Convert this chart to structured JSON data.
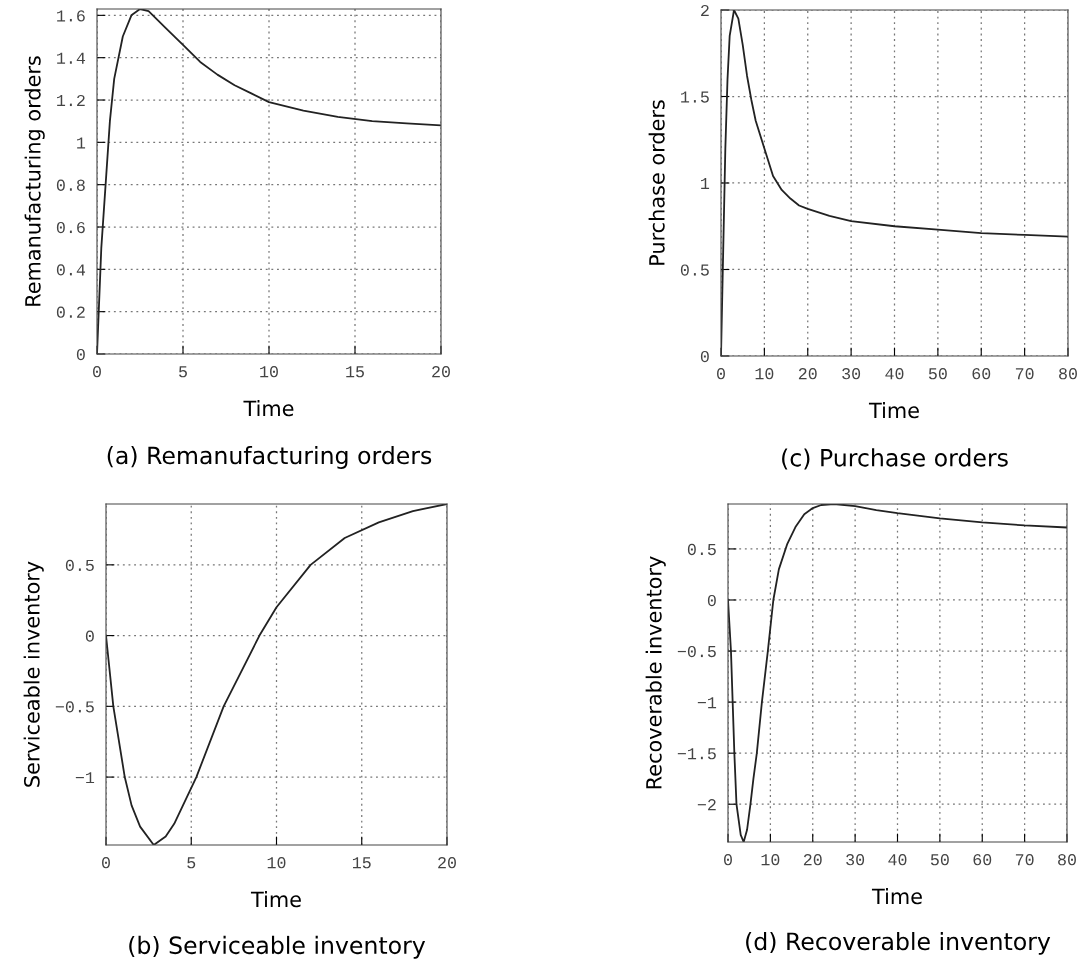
{
  "chart_data": [
    {
      "type": "line",
      "xlabel": "Time",
      "ylabel": "Remanufacturing orders",
      "annotations": [
        "(a) Remanufacturing orders"
      ],
      "grid": true,
      "x": [
        0,
        0.25,
        0.5,
        0.75,
        1,
        1.5,
        2,
        2.5,
        3,
        4,
        5,
        6,
        7,
        8,
        9,
        10,
        12,
        14,
        16,
        18,
        20
      ],
      "series": [
        {
          "color": "#222222",
          "values": [
            0,
            0.5,
            0.8,
            1.1,
            1.3,
            1.5,
            1.6,
            1.63,
            1.62,
            1.54,
            1.46,
            1.38,
            1.32,
            1.27,
            1.23,
            1.19,
            1.15,
            1.12,
            1.1,
            1.09,
            1.08
          ]
        }
      ],
      "xlim": [
        0,
        20
      ],
      "ylim": [
        0,
        1.63
      ],
      "xticks": [
        0,
        5,
        10,
        15,
        20
      ],
      "yticks": [
        0,
        0.2,
        0.4,
        0.6,
        0.8,
        1,
        1.2,
        1.4,
        1.6
      ]
    },
    {
      "type": "line",
      "xlabel": "Time",
      "ylabel": "Purchase orders",
      "annotations": [
        "(c) Purchase orders"
      ],
      "grid": true,
      "x": [
        0,
        0.5,
        1,
        1.5,
        2,
        3,
        4,
        5,
        6,
        7,
        8,
        10,
        12,
        14,
        16,
        18,
        20,
        25,
        30,
        40,
        50,
        60,
        70,
        80
      ],
      "series": [
        {
          "color": "#222222",
          "values": [
            0,
            0.6,
            1.2,
            1.6,
            1.85,
            2.0,
            1.95,
            1.8,
            1.62,
            1.48,
            1.36,
            1.2,
            1.04,
            0.96,
            0.91,
            0.87,
            0.85,
            0.81,
            0.78,
            0.75,
            0.73,
            0.71,
            0.7,
            0.69
          ]
        }
      ],
      "xlim": [
        0,
        80
      ],
      "ylim": [
        0,
        2
      ],
      "xticks": [
        0,
        10,
        20,
        30,
        40,
        50,
        60,
        70,
        80
      ],
      "yticks": [
        0,
        0.5,
        1,
        1.5,
        2
      ]
    },
    {
      "type": "line",
      "xlabel": "Time",
      "ylabel": "Serviceable inventory",
      "annotations": [
        "(b) Serviceable inventory"
      ],
      "grid": true,
      "x": [
        0,
        0.43,
        1.1,
        1.5,
        2,
        2.8,
        3.5,
        4,
        5.3,
        6.9,
        9,
        10,
        12,
        14,
        16,
        18,
        20
      ],
      "series": [
        {
          "color": "#222222",
          "values": [
            0,
            -0.5,
            -1.0,
            -1.2,
            -1.35,
            -1.48,
            -1.42,
            -1.33,
            -1.0,
            -0.5,
            0,
            0.2,
            0.5,
            0.69,
            0.8,
            0.88,
            0.93
          ]
        }
      ],
      "xlim": [
        0,
        20
      ],
      "ylim": [
        -1.48,
        0.93
      ],
      "xticks": [
        0,
        5,
        10,
        15,
        20
      ],
      "yticks": [
        {
          "value": -1,
          "label": "−1"
        },
        {
          "value": -0.5,
          "label": "−0.5"
        },
        0,
        0.5
      ]
    },
    {
      "type": "line",
      "xlabel": "Time",
      "ylabel": "Recoverable inventory",
      "annotations": [
        "(d) Recoverable inventory"
      ],
      "grid": true,
      "x": [
        0,
        0.7,
        1.1,
        1.5,
        2,
        3,
        3.7,
        4.5,
        5.3,
        6,
        6.8,
        8,
        9.4,
        10.7,
        12,
        14,
        16,
        18,
        20,
        22,
        25,
        30,
        35,
        40,
        50,
        60,
        70,
        80
      ],
      "series": [
        {
          "color": "#222222",
          "values": [
            0,
            -0.5,
            -1.0,
            -1.5,
            -2.0,
            -2.3,
            -2.37,
            -2.25,
            -2.0,
            -1.75,
            -1.5,
            -1.0,
            -0.5,
            0,
            0.3,
            0.55,
            0.72,
            0.84,
            0.9,
            0.93,
            0.94,
            0.92,
            0.88,
            0.85,
            0.8,
            0.76,
            0.73,
            0.71
          ]
        }
      ],
      "xlim": [
        0,
        80
      ],
      "ylim": [
        -2.37,
        0.94
      ],
      "xticks": [
        0,
        10,
        20,
        30,
        40,
        50,
        60,
        70,
        80
      ],
      "yticks": [
        {
          "value": -2,
          "label": "−2"
        },
        {
          "value": -1.5,
          "label": "−1.5"
        },
        {
          "value": -1,
          "label": "−1"
        },
        {
          "value": -0.5,
          "label": "−0.5"
        },
        0,
        0.5
      ]
    }
  ]
}
